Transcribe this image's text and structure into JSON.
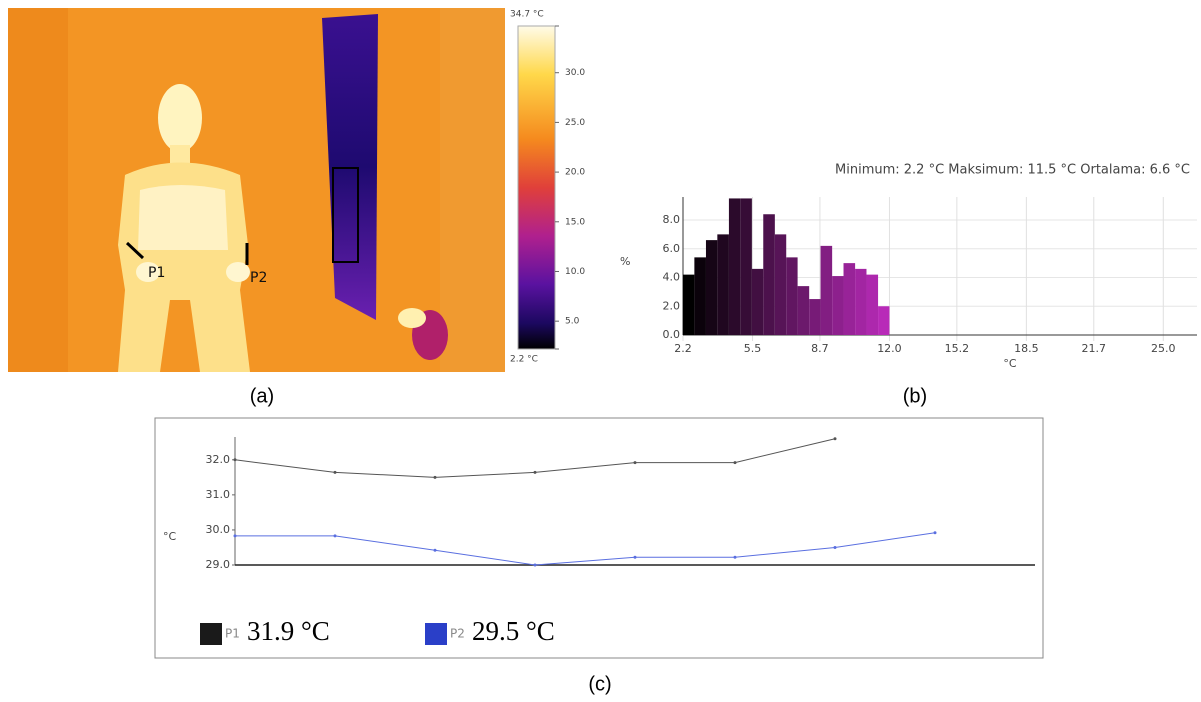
{
  "thermal_image": {
    "markers": [
      "P1",
      "P2"
    ],
    "caption": "(a)",
    "colorbar": {
      "lim": [
        2.2,
        34.7
      ],
      "ticks": [
        {
          "value": 34.7,
          "label": "34.7 °C"
        },
        {
          "value": 30,
          "label": "30.0"
        },
        {
          "value": 25,
          "label": "25.0"
        },
        {
          "value": 20,
          "label": "20.0"
        },
        {
          "value": 15,
          "label": "15.0"
        },
        {
          "value": 10,
          "label": "10.0"
        },
        {
          "value": 5,
          "label": "5.0"
        },
        {
          "value": 2.2,
          "label": "2.2 °C"
        }
      ]
    }
  },
  "chart_data": [
    {
      "type": "histogram",
      "subtitle": "Minimum: 2.2 °C Maksimum: 11.5 °C Ortalama: 6.6 °C",
      "ylabel": "%",
      "xlabel": "°C",
      "caption": "(b)",
      "bins": [
        2.2,
        2.74,
        3.29,
        3.83,
        4.38,
        4.92,
        5.47,
        6.01,
        6.56,
        7.1,
        7.64,
        8.19,
        8.73,
        9.28,
        9.82,
        10.37,
        10.91,
        11.46,
        12.0
      ],
      "values": [
        4.2,
        5.4,
        6.6,
        7.0,
        9.5,
        9.5,
        4.6,
        8.4,
        7.0,
        5.4,
        3.4,
        2.5,
        6.2,
        4.1,
        5.0,
        4.6,
        4.2,
        2.0
      ],
      "color_range": [
        "#000000",
        "#b82ab8"
      ],
      "xlim": [
        2.2,
        26.6
      ],
      "xticks": [
        2.2,
        5.5,
        8.7,
        {
          "value": 12,
          "label": "12.0"
        },
        15.2,
        18.5,
        21.7,
        {
          "value": 25,
          "label": "25.0"
        }
      ],
      "ylim": [
        0,
        9.6
      ],
      "yticks": [
        {
          "value": 0,
          "label": "0.0"
        },
        {
          "value": 2,
          "label": "2.0"
        },
        {
          "value": 4,
          "label": "4.0"
        },
        {
          "value": 6,
          "label": "6.0"
        },
        {
          "value": 8,
          "label": "8.0"
        }
      ],
      "grid": true
    },
    {
      "type": "line",
      "ylabel": "°C",
      "caption": "(c)",
      "categories": [
        null,
        null,
        null,
        null,
        null,
        null,
        null,
        null
      ],
      "series": [
        {
          "name": "P1",
          "reading": "31.9 °C",
          "color": "#1a1a1a",
          "line_color": "#555555",
          "values": [
            32.0,
            31.64,
            31.5,
            31.64,
            31.92,
            31.92,
            32.6,
            null
          ]
        },
        {
          "name": "P2",
          "reading": "29.5 °C",
          "color": "#2a3fc8",
          "line_color": "#5a6fe0",
          "values": [
            29.83,
            29.83,
            29.42,
            29.0,
            29.22,
            29.22,
            29.5,
            29.92
          ]
        }
      ],
      "ylim": [
        29,
        32.65
      ],
      "yticks": [
        {
          "value": 29,
          "label": "29.0"
        },
        {
          "value": 30,
          "label": "30.0"
        },
        {
          "value": 31,
          "label": "31.0"
        },
        {
          "value": 32,
          "label": "32.0"
        }
      ]
    }
  ]
}
